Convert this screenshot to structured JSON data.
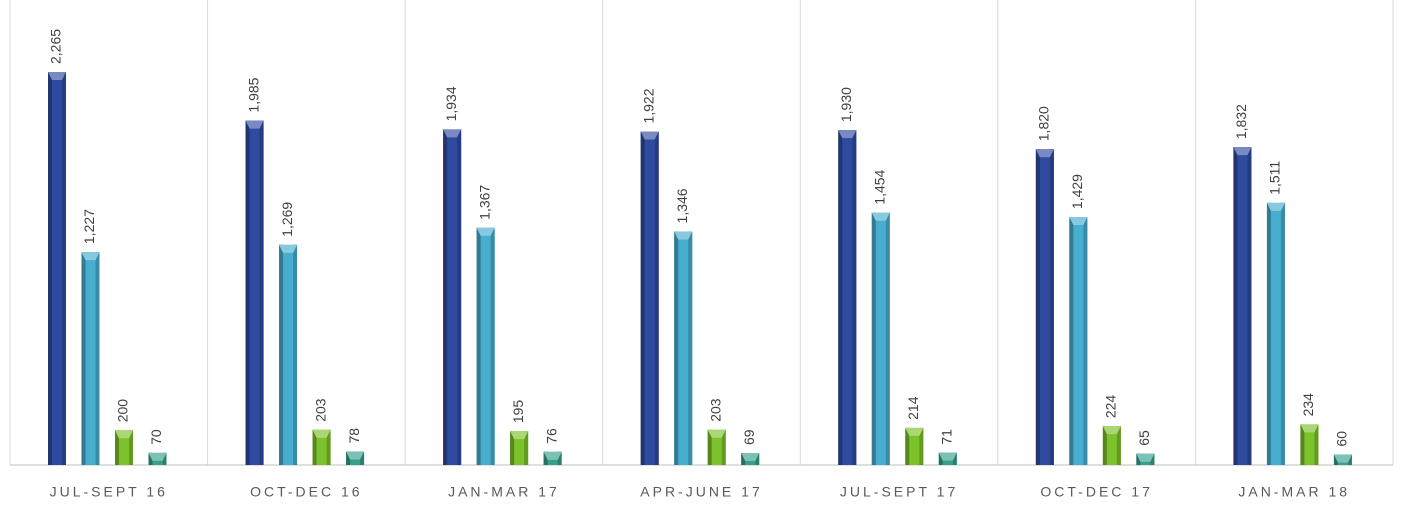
{
  "chart_data": {
    "type": "bar",
    "categories": [
      "JUL-SEPT 16",
      "OCT-DEC 16",
      "JAN-MAR 17",
      "APR-JUNE 17",
      "JUL-SEPT 17",
      "OCT-DEC 17",
      "JAN-MAR 18"
    ],
    "series": [
      {
        "color": "#2f4ba0",
        "values": [
          2265,
          1985,
          1934,
          1922,
          1930,
          1820,
          1832
        ],
        "value_labels": [
          "2,265",
          "1,985",
          "1,934",
          "1,922",
          "1,930",
          "1,820",
          "1,832"
        ]
      },
      {
        "color": "#47aed0",
        "values": [
          1227,
          1269,
          1367,
          1346,
          1454,
          1429,
          1511
        ],
        "value_labels": [
          "1,227",
          "1,269",
          "1,367",
          "1,346",
          "1,454",
          "1,429",
          "1,511"
        ]
      },
      {
        "color": "#7cc22a",
        "values": [
          200,
          203,
          195,
          203,
          214,
          224,
          234
        ]
      },
      {
        "color": "#36a08a",
        "values": [
          70,
          78,
          76,
          69,
          71,
          65,
          60
        ]
      }
    ]
  }
}
